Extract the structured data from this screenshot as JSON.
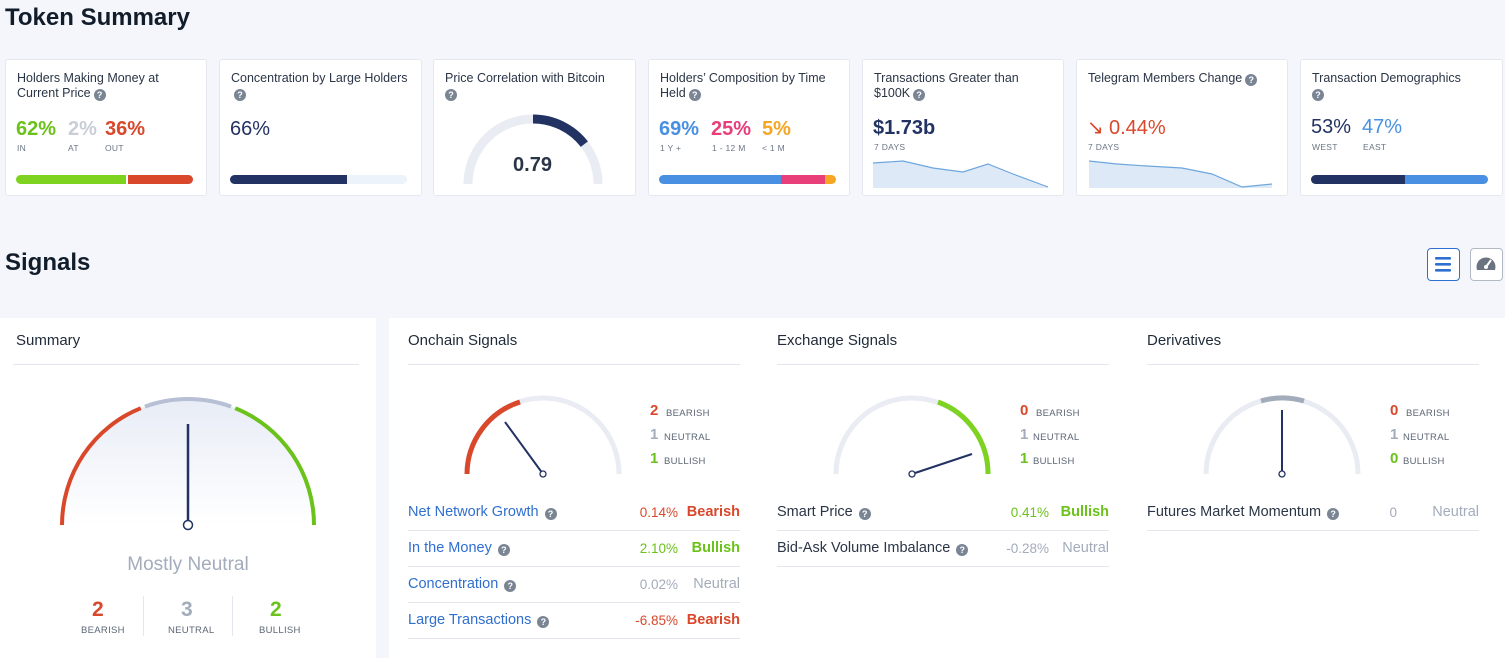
{
  "token_summary": {
    "title": "Token Summary",
    "holders_money": {
      "title": "Holders Making Money at Current Price",
      "in_value": "62%",
      "in_label": "IN",
      "at_value": "2%",
      "at_label": "AT",
      "out_value": "36%",
      "out_label": "OUT",
      "in_fraction": 0.62,
      "out_fraction": 0.36
    },
    "concentration": {
      "title": "Concentration by Large Holders",
      "value": "66%",
      "fraction": 0.66
    },
    "price_correlation": {
      "title": "Price Correlation with Bitcoin",
      "value": "0.79",
      "level": 0.79
    },
    "composition": {
      "title": "Holders’ Composition by Time Held",
      "v1": "69%",
      "l1": "1 Y +",
      "v2": "25%",
      "l2": "1 - 12 M",
      "v3": "5%",
      "l3": "< 1 M",
      "f1": 0.69,
      "f2": 0.25,
      "f3": 0.05
    },
    "transactions": {
      "title": "Transactions Greater than $100K",
      "value": "$1.73b",
      "sub": "7 DAYS"
    },
    "telegram": {
      "title": "Telegram Members Change",
      "arrow": "↘",
      "value": "0.44%",
      "sub": "7 DAYS"
    },
    "demographics": {
      "title": "Transaction Demographics",
      "west_value": "53%",
      "west_label": "WEST",
      "east_value": "47%",
      "east_label": "EAST",
      "west_fraction": 0.53,
      "east_fraction": 0.47
    }
  },
  "signals": {
    "title": "Signals",
    "summary": {
      "title": "Summary",
      "verdict": "Mostly Neutral",
      "bearish_count": "2",
      "bearish_label": "BEARISH",
      "neutral_count": "3",
      "neutral_label": "NEUTRAL",
      "bullish_count": "2",
      "bullish_label": "BULLISH"
    },
    "onchain": {
      "title": "Onchain Signals",
      "bearish_count": "2",
      "bearish_label": "BEARISH",
      "neutral_count": "1",
      "neutral_label": "NEUTRAL",
      "bullish_count": "1",
      "bullish_label": "BULLISH",
      "rows": [
        {
          "name": "Net Network Growth",
          "value": "0.14%",
          "status": "Bearish"
        },
        {
          "name": "In the Money",
          "value": "2.10%",
          "status": "Bullish"
        },
        {
          "name": "Concentration",
          "value": "0.02%",
          "status": "Neutral"
        },
        {
          "name": "Large Transactions",
          "value": "-6.85%",
          "status": "Bearish"
        }
      ]
    },
    "exchange": {
      "title": "Exchange Signals",
      "bearish_count": "0",
      "bearish_label": "BEARISH",
      "neutral_count": "1",
      "neutral_label": "NEUTRAL",
      "bullish_count": "1",
      "bullish_label": "BULLISH",
      "rows": [
        {
          "name": "Smart Price",
          "value": "0.41%",
          "status": "Bullish"
        },
        {
          "name": "Bid-Ask Volume Imbalance",
          "value": "-0.28%",
          "status": "Neutral"
        }
      ]
    },
    "derivatives": {
      "title": "Derivatives",
      "bearish_count": "0",
      "bearish_label": "BEARISH",
      "neutral_count": "1",
      "neutral_label": "NEUTRAL",
      "bullish_count": "0",
      "bullish_label": "BULLISH",
      "rows": [
        {
          "name": "Futures Market Momentum",
          "value": "0",
          "status": "Neutral"
        }
      ]
    }
  },
  "toolbar": {
    "list_icon": "list-icon",
    "gauge_icon": "gauge-icon"
  },
  "colors": {
    "bearish": "#d9482b",
    "neutral": "#a3acbb",
    "bullish": "#6bc21a",
    "navy": "#223263",
    "blue": "#4a90e2",
    "pink": "#e83e7a",
    "orange": "#f5a623"
  }
}
